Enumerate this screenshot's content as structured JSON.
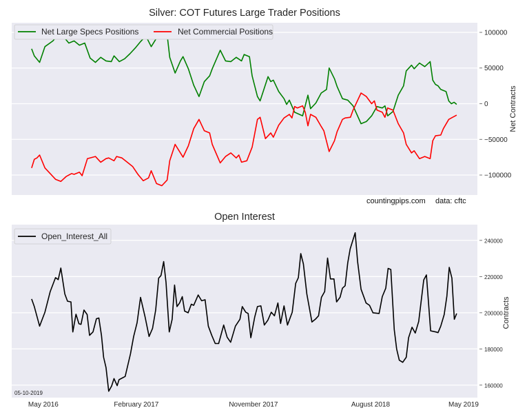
{
  "chart_data": [
    {
      "type": "line",
      "title": "Silver: COT Futures Large Trader Positions",
      "xlabel": "",
      "ylabel": "Net Contracts",
      "x_unit": "weeks since late March 2016",
      "values_in_thousands": true,
      "xlim": [
        -7.5,
        167.8
      ],
      "ylim": [
        -128000,
        113500
      ],
      "yticks": [
        100000,
        50000,
        0,
        -50000,
        -100000
      ],
      "ytick_labels": [
        "100000",
        "50000",
        "0",
        "−50000",
        "−100000"
      ],
      "grid": true,
      "legend": "top-left",
      "annotations": [
        "countingpips.com",
        "data: cftc"
      ],
      "series": [
        {
          "name": "Net Large Specs Positions",
          "color": "#008000",
          "x": [
            0,
            1,
            3,
            5,
            8,
            10,
            12,
            14,
            16,
            18,
            20,
            22,
            24,
            26,
            28,
            30,
            31,
            33,
            35,
            37,
            39,
            41,
            43,
            45,
            47,
            49,
            51,
            52,
            54,
            56,
            57,
            59,
            61,
            63,
            65,
            67,
            68,
            71,
            73,
            75,
            77,
            79,
            80,
            82,
            83,
            85,
            86,
            89,
            90,
            91,
            93,
            95,
            96,
            97,
            99,
            102,
            104,
            105,
            107,
            109,
            111,
            112,
            114,
            115,
            117,
            119,
            121,
            124,
            126,
            128,
            130,
            132,
            133,
            134,
            136,
            138,
            140,
            141,
            143,
            144,
            146,
            148,
            150,
            151,
            152,
            153,
            154,
            156,
            157,
            158,
            159,
            160
          ],
          "y": [
            77,
            67,
            58,
            80,
            88,
            97,
            94,
            85,
            88,
            82,
            85,
            64,
            58,
            65,
            60,
            59,
            67,
            59,
            63,
            70,
            78,
            87,
            95,
            80,
            92,
            105,
            97,
            65,
            43,
            60,
            66,
            49,
            26,
            10,
            31,
            39,
            49,
            75,
            60,
            59,
            65,
            60,
            69,
            66,
            39,
            10,
            4,
            38,
            31,
            33,
            17,
            7,
            -1,
            5,
            -12,
            -17,
            12,
            -7,
            1,
            15,
            20,
            50,
            35,
            24,
            7,
            5,
            -3,
            -28,
            -25,
            -17,
            -4,
            -6,
            -3,
            -17,
            -11,
            12,
            25,
            46,
            54,
            49,
            57,
            52,
            59,
            33,
            27,
            25,
            20,
            17,
            4,
            0,
            2,
            -1
          ]
        },
        {
          "name": "Net Commercial Positions",
          "color": "#ff0000",
          "x": [
            0,
            1,
            2,
            3,
            5,
            7,
            9,
            11,
            13,
            15,
            16,
            18,
            19,
            21,
            24,
            26,
            28,
            29,
            31,
            32,
            34,
            36,
            38,
            40,
            42,
            44,
            45,
            47,
            49,
            51,
            52,
            54,
            56,
            57,
            59,
            61,
            63,
            65,
            67,
            68,
            71,
            73,
            75,
            77,
            78,
            79,
            81,
            83,
            85,
            86,
            88,
            90,
            91,
            93,
            95,
            97,
            98,
            99,
            100,
            102,
            103,
            104,
            105,
            107,
            109,
            110,
            112,
            114,
            115,
            117,
            118,
            120,
            121,
            124,
            126,
            128,
            129,
            130,
            132,
            133,
            134,
            136,
            138,
            140,
            141,
            143,
            144,
            146,
            148,
            150,
            151,
            152,
            154,
            155,
            157,
            158,
            160
          ],
          "y": [
            -90,
            -78,
            -76,
            -72,
            -90,
            -98,
            -106,
            -109,
            -102,
            -98,
            -99,
            -96,
            -101,
            -77,
            -74,
            -82,
            -77,
            -76,
            -80,
            -74,
            -76,
            -82,
            -88,
            -99,
            -108,
            -104,
            -94,
            -112,
            -115,
            -107,
            -80,
            -57,
            -69,
            -75,
            -59,
            -35,
            -22,
            -38,
            -41,
            -57,
            -83,
            -74,
            -69,
            -76,
            -72,
            -82,
            -80,
            -61,
            -22,
            -19,
            -49,
            -41,
            -47,
            -30,
            -20,
            -15,
            -20,
            -4,
            -6,
            -3,
            -12,
            -31,
            -15,
            -19,
            -32,
            -38,
            -67,
            -52,
            -39,
            -22,
            -20,
            -19,
            -9,
            15,
            10,
            0,
            4,
            -9,
            -12,
            -19,
            -6,
            -9,
            -28,
            -41,
            -57,
            -69,
            -66,
            -77,
            -74,
            -77,
            -52,
            -45,
            -44,
            -35,
            -22,
            -20,
            -16
          ]
        }
      ]
    },
    {
      "type": "line",
      "title": "Open Interest",
      "xlabel": "",
      "ylabel": "Contracts",
      "x_unit": "weeks since late March 2016",
      "values_in_thousands": true,
      "xlim": [
        -7.5,
        167.8
      ],
      "ylim": [
        153100,
        248700
      ],
      "yticks": [
        240000,
        220000,
        200000,
        180000,
        160000
      ],
      "ytick_labels": [
        "240000",
        "220000",
        "200000",
        "180000",
        "160000"
      ],
      "xticks": [
        4.4,
        39.4,
        83.5,
        127.6,
        162.6
      ],
      "xtick_labels": [
        "May 2016",
        "February 2017",
        "November 2017",
        "August 2018",
        "May 2019"
      ],
      "grid": true,
      "legend": "top-left",
      "annotations": [
        "05-10-2019"
      ],
      "series": [
        {
          "name": "Open_Interest_All",
          "color": "#000000",
          "x": [
            0,
            1,
            3,
            5,
            7,
            9,
            10,
            11,
            12.5,
            13.5,
            14.8,
            15.5,
            16.7,
            17.8,
            18.6,
            19.7,
            20.9,
            21.8,
            23.1,
            24.4,
            25.3,
            26.3,
            27.1,
            28,
            29,
            30.1,
            31,
            32.2,
            32.9,
            35.2,
            37.2,
            38.4,
            39.7,
            41,
            42.7,
            44.2,
            45.5,
            46.7,
            47.8,
            48.7,
            49.7,
            50.6,
            51.8,
            52.9,
            53.8,
            54.7,
            55.7,
            56.7,
            57.6,
            58.9,
            60.1,
            61,
            62.7,
            64,
            65.3,
            66.5,
            67.8,
            69.1,
            70.4,
            72.3,
            73.6,
            74.9,
            76.7,
            78.4,
            79.3,
            80.6,
            81.5,
            82.5,
            84,
            85,
            86.3,
            87.6,
            88.9,
            90.2,
            91.4,
            92.7,
            93.7,
            95,
            96.3,
            98.1,
            99.4,
            100.4,
            101.3,
            102.3,
            103.6,
            105.5,
            106.8,
            108,
            109.1,
            110.3,
            111.4,
            112.5,
            113.8,
            114.8,
            116.1,
            117,
            118,
            119,
            119.9,
            121.8,
            122.7,
            124,
            125.9,
            127.2,
            128.5,
            130.8,
            132,
            133.3,
            134.2,
            135.2,
            136.5,
            137.4,
            138.4,
            139.7,
            141,
            141.9,
            143.2,
            144.4,
            145.7,
            147.6,
            148.6,
            150.2,
            152.1,
            153,
            154,
            155.3,
            156.3,
            157.2,
            158.2,
            159.1,
            160
          ],
          "y": [
            207.6,
            203.4,
            192.6,
            200.3,
            211.7,
            219.4,
            218.3,
            224.7,
            210.4,
            206.4,
            206,
            189.4,
            199.2,
            193.9,
            193.6,
            201.5,
            199,
            187.5,
            189.4,
            196.7,
            197.1,
            187.5,
            175.4,
            169.7,
            156.6,
            159.5,
            163.6,
            159.7,
            163,
            164.8,
            177.3,
            186.9,
            194.5,
            208.5,
            197.7,
            186.9,
            191.3,
            201.5,
            219.1,
            220.6,
            228.3,
            216.8,
            189.4,
            196.4,
            215.3,
            203.4,
            205.4,
            208.9,
            200.9,
            200,
            204.7,
            204.1,
            209.8,
            206.6,
            207.2,
            192.6,
            187.5,
            183,
            183,
            193.2,
            186.5,
            183.7,
            192.6,
            196.4,
            203.4,
            200.3,
            199.6,
            186.2,
            197.7,
            203.4,
            203.8,
            193.2,
            195.8,
            200.3,
            198.3,
            205.4,
            194.1,
            203.8,
            193.2,
            200.3,
            216.2,
            219.4,
            232.7,
            227,
            210.4,
            194.9,
            196.4,
            198.3,
            208.5,
            211.7,
            230.2,
            218.7,
            218.7,
            206,
            208.5,
            213.6,
            214.9,
            227.6,
            235.3,
            244.2,
            228.3,
            213,
            205.4,
            204.1,
            200,
            199.6,
            208.9,
            213.6,
            224.5,
            223.9,
            190.7,
            179.9,
            173.8,
            172.6,
            175.4,
            186.2,
            192,
            188.8,
            195.2,
            218.1,
            220.9,
            190,
            189.4,
            189,
            192.6,
            199,
            209.2,
            225.1,
            219.1,
            196.4,
            199.6
          ]
        }
      ]
    }
  ]
}
